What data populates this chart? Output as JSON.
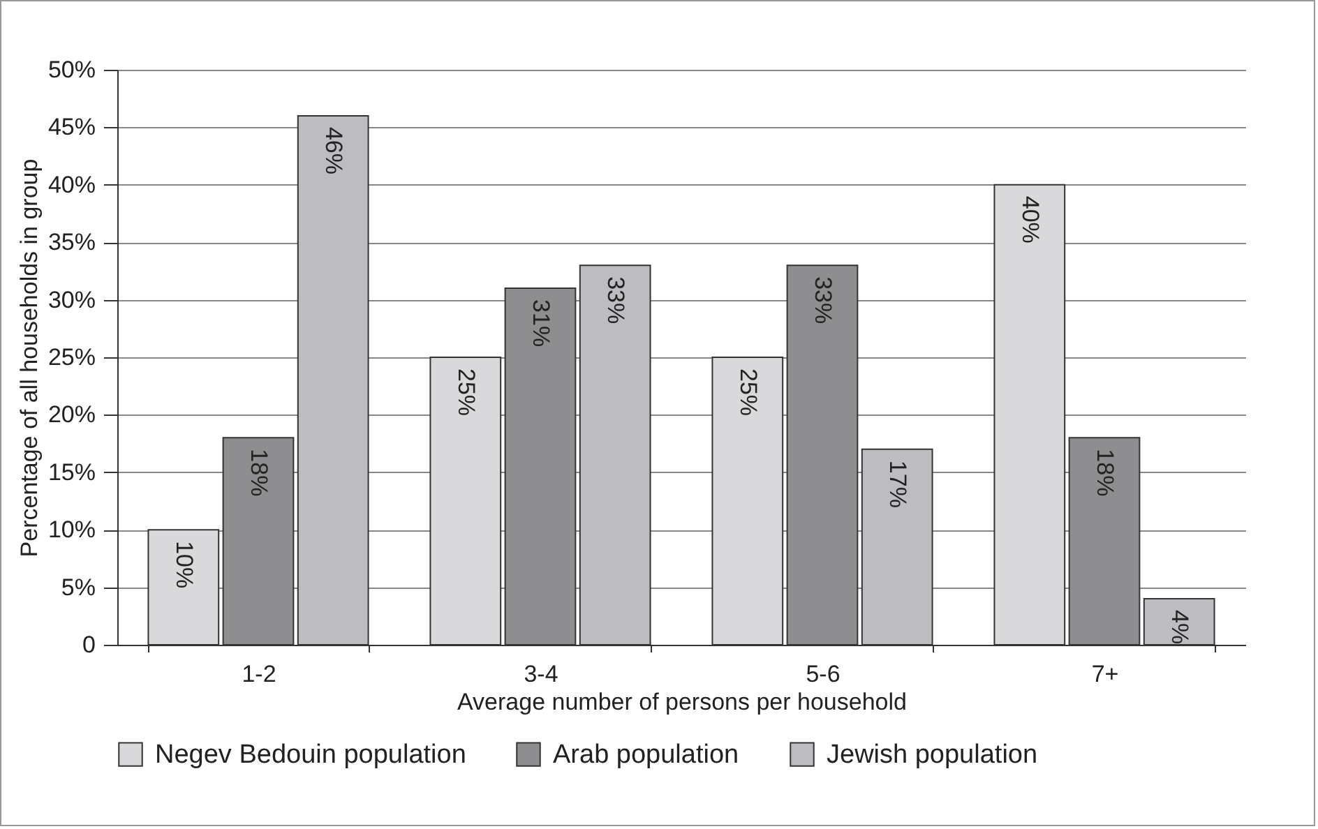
{
  "chart_data": {
    "type": "bar",
    "xlabel": "Average number of persons per household",
    "ylabel": "Percentage of all households in group",
    "categories": [
      "1-2",
      "3-4",
      "5-6",
      "7+"
    ],
    "series": [
      {
        "name": "Negev Bedouin population",
        "color": "#d9d9db",
        "values": [
          10,
          25,
          25,
          40
        ],
        "value_labels": [
          "10%",
          "25%",
          "25%",
          "40%"
        ]
      },
      {
        "name": "Arab population",
        "color": "#8e8e90",
        "values": [
          18,
          31,
          33,
          18
        ],
        "value_labels": [
          "18%",
          "31%",
          "33%",
          "18%"
        ]
      },
      {
        "name": "Jewish population",
        "color": "#bdbdc1",
        "values": [
          46,
          33,
          17,
          4
        ],
        "value_labels": [
          "46%",
          "33%",
          "17%",
          "4%"
        ]
      }
    ],
    "ylim": [
      0,
      50
    ],
    "yticks": [
      0,
      {
        "value": 5,
        "label": "5%"
      },
      {
        "value": 10,
        "label": "10%"
      },
      {
        "value": 15,
        "label": "15%"
      },
      {
        "value": 20,
        "label": "20%"
      },
      {
        "value": 25,
        "label": "25%"
      },
      {
        "value": 30,
        "label": "30%"
      },
      {
        "value": 35,
        "label": "35%"
      },
      {
        "value": 40,
        "label": "40%"
      },
      {
        "value": 45,
        "label": "45%"
      },
      {
        "value": 50,
        "label": "50%"
      }
    ],
    "grid": true,
    "legend": "bottom"
  }
}
